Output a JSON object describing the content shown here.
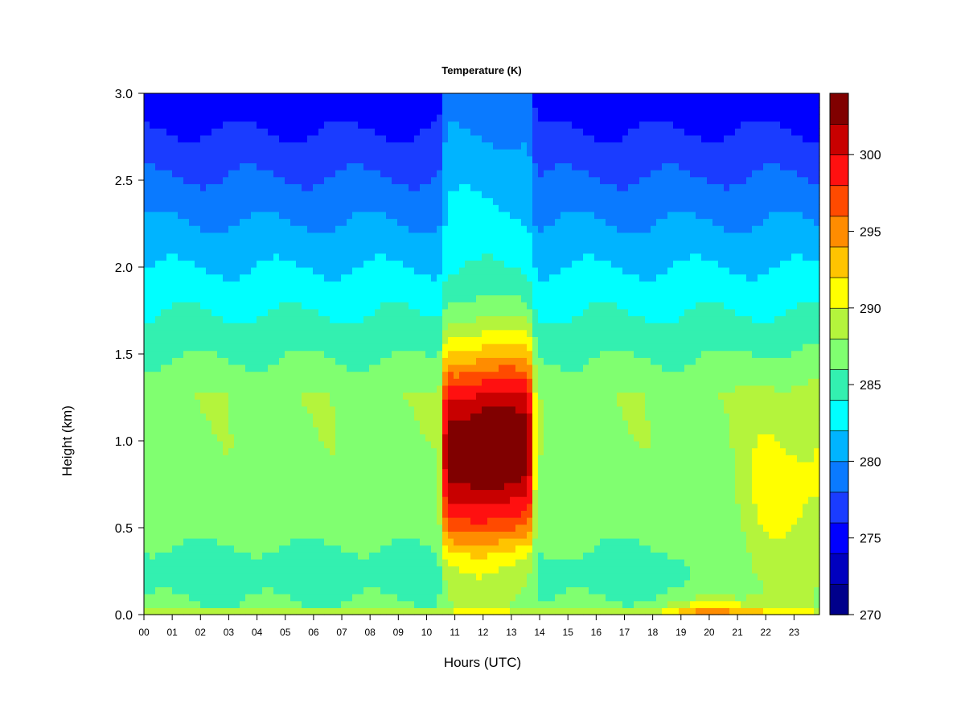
{
  "chart_data": {
    "type": "heatmap",
    "title": "Temperature (K)",
    "xlabel": "Hours (UTC)",
    "ylabel": "Height (km)",
    "x_ticks": [
      "00",
      "01",
      "02",
      "03",
      "04",
      "05",
      "06",
      "07",
      "08",
      "09",
      "10",
      "11",
      "12",
      "13",
      "14",
      "15",
      "16",
      "17",
      "18",
      "19",
      "20",
      "21",
      "22",
      "23"
    ],
    "y_ticks": [
      "0.0",
      "0.5",
      "1.0",
      "1.5",
      "2.0",
      "2.5",
      "3.0"
    ],
    "xlim": [
      0,
      23.9
    ],
    "ylim": [
      0,
      3.0
    ],
    "colorbar": {
      "range": [
        270,
        304
      ],
      "tick_values": [
        270,
        275,
        280,
        285,
        290,
        295,
        300
      ],
      "tick_labels": [
        "270",
        "275",
        "280",
        "285",
        "290",
        "295",
        "300"
      ],
      "levels": [
        270,
        272,
        274,
        276,
        278,
        280,
        282,
        284,
        286,
        288,
        290,
        292,
        294,
        296,
        298,
        300,
        302,
        304
      ],
      "colors": [
        "#00008B",
        "#0000BF",
        "#0000FF",
        "#1A3CFF",
        "#0A7AFF",
        "#00B4FF",
        "#00FFFF",
        "#33F0B0",
        "#80FF70",
        "#B4F43C",
        "#FFFF00",
        "#FFC400",
        "#FF8C00",
        "#FF4A00",
        "#FF1010",
        "#C80000",
        "#800000"
      ],
      "position": "right"
    },
    "features": [
      {
        "hours": [
          10.5,
          13.8
        ],
        "heights_km": [
          0.35,
          1.8
        ],
        "peak_K": 302,
        "peak_at": {
          "hour": 12.3,
          "height_km": 0.95
        }
      },
      {
        "hours": [
          19,
          22
        ],
        "heights_km": [
          0.0,
          0.1
        ],
        "peak_K": 296
      }
    ],
    "grid": false
  }
}
